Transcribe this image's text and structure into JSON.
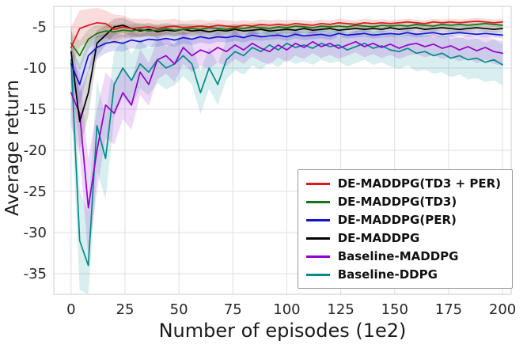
{
  "chart_data": {
    "type": "line",
    "title": "",
    "xlabel": "Number of episodes (1e2)",
    "ylabel": "Average return",
    "xlim": [
      -8,
      204
    ],
    "ylim": [
      -37.5,
      -2.5
    ],
    "xticks": [
      0,
      25,
      50,
      75,
      100,
      125,
      150,
      175,
      200
    ],
    "yticks": [
      -35,
      -30,
      -25,
      -20,
      -15,
      -10,
      -5
    ],
    "grid": true,
    "legend_position": "lower right",
    "x": [
      0,
      4,
      8,
      12,
      16,
      20,
      24,
      28,
      32,
      36,
      40,
      44,
      48,
      52,
      56,
      60,
      64,
      68,
      72,
      76,
      80,
      84,
      88,
      92,
      96,
      100,
      104,
      108,
      112,
      116,
      120,
      124,
      128,
      132,
      136,
      140,
      144,
      148,
      152,
      156,
      160,
      164,
      168,
      172,
      176,
      180,
      184,
      188,
      192,
      196,
      200
    ],
    "series": [
      {
        "name": "DE-MADDPG(TD3 + PER)",
        "color": "#e01717",
        "values": [
          -7.5,
          -5.2,
          -4.8,
          -4.5,
          -4.6,
          -5.3,
          -5.0,
          -5.2,
          -5.1,
          -5.0,
          -5.2,
          -5.0,
          -4.9,
          -5.1,
          -5.0,
          -4.9,
          -5.0,
          -4.8,
          -4.9,
          -5.0,
          -4.8,
          -4.9,
          -4.7,
          -4.8,
          -4.7,
          -4.8,
          -4.6,
          -4.7,
          -4.8,
          -4.6,
          -4.7,
          -4.5,
          -4.6,
          -4.7,
          -4.5,
          -4.6,
          -4.5,
          -4.6,
          -4.5,
          -4.4,
          -4.5,
          -4.6,
          -4.4,
          -4.5,
          -4.4,
          -4.5,
          -4.4,
          -4.3,
          -4.4,
          -4.5,
          -4.4
        ],
        "band": [
          2.5,
          2.2,
          2.0,
          1.8,
          1.6,
          1.8,
          1.4,
          1.2,
          1.1,
          1.0,
          1.0,
          0.9,
          0.9,
          0.8,
          0.8,
          0.8,
          0.7,
          0.7,
          0.7,
          0.7,
          0.6,
          0.6,
          0.6,
          0.6,
          0.6,
          0.6,
          0.5,
          0.5,
          0.5,
          0.5,
          0.5,
          0.5,
          0.5,
          0.5,
          0.5,
          0.5,
          0.4,
          0.4,
          0.4,
          0.4,
          0.4,
          0.4,
          0.4,
          0.4,
          0.4,
          0.4,
          0.4,
          0.4,
          0.4,
          0.4,
          0.4
        ]
      },
      {
        "name": "DE-MADDPG(TD3)",
        "color": "#127412",
        "values": [
          -7.0,
          -8.5,
          -6.5,
          -5.8,
          -5.5,
          -5.6,
          -5.4,
          -5.5,
          -5.3,
          -5.5,
          -5.4,
          -5.2,
          -5.4,
          -5.3,
          -5.2,
          -5.3,
          -5.1,
          -5.2,
          -5.3,
          -5.1,
          -5.2,
          -5.0,
          -5.1,
          -5.2,
          -5.0,
          -5.1,
          -4.9,
          -5.0,
          -5.1,
          -4.9,
          -5.0,
          -4.9,
          -5.0,
          -4.8,
          -4.9,
          -5.0,
          -4.8,
          -4.9,
          -4.8,
          -4.9,
          -4.7,
          -4.8,
          -4.9,
          -4.7,
          -4.8,
          -4.7,
          -4.8,
          -4.7,
          -4.6,
          -4.7,
          -4.8
        ],
        "band": [
          1.5,
          1.8,
          1.2,
          1.0,
          0.9,
          0.9,
          0.8,
          0.8,
          0.8,
          0.7,
          0.7,
          0.7,
          0.7,
          0.6,
          0.6,
          0.6,
          0.6,
          0.6,
          0.5,
          0.5,
          0.5,
          0.5,
          0.5,
          0.5,
          0.5,
          0.5,
          0.4,
          0.4,
          0.4,
          0.4,
          0.4,
          0.4,
          0.4,
          0.4,
          0.4,
          0.4,
          0.4,
          0.4,
          0.4,
          0.4,
          0.3,
          0.3,
          0.3,
          0.3,
          0.3,
          0.3,
          0.3,
          0.3,
          0.3,
          0.3,
          0.3
        ]
      },
      {
        "name": "DE-MADDPG(PER)",
        "color": "#1414cc",
        "values": [
          -9.5,
          -12.0,
          -8.5,
          -7.5,
          -7.0,
          -6.8,
          -7.0,
          -6.6,
          -6.8,
          -6.5,
          -6.6,
          -6.4,
          -6.6,
          -6.3,
          -6.5,
          -6.2,
          -6.4,
          -6.2,
          -6.3,
          -6.1,
          -6.3,
          -6.0,
          -6.2,
          -6.1,
          -6.0,
          -6.2,
          -5.9,
          -6.1,
          -6.0,
          -5.9,
          -6.1,
          -5.8,
          -6.0,
          -5.9,
          -5.8,
          -6.0,
          -5.9,
          -5.8,
          -5.9,
          -5.7,
          -5.9,
          -5.8,
          -5.7,
          -5.9,
          -5.8,
          -5.7,
          -5.8,
          -5.9,
          -5.8,
          -5.9,
          -6.0
        ],
        "band": [
          2.0,
          2.5,
          1.8,
          1.4,
          1.2,
          1.1,
          1.0,
          1.0,
          0.9,
          0.9,
          0.8,
          0.8,
          0.8,
          0.7,
          0.7,
          0.7,
          0.7,
          0.6,
          0.6,
          0.6,
          0.6,
          0.6,
          0.5,
          0.5,
          0.5,
          0.5,
          0.5,
          0.5,
          0.5,
          0.5,
          0.5,
          0.4,
          0.4,
          0.4,
          0.4,
          0.4,
          0.4,
          0.4,
          0.4,
          0.4,
          0.4,
          0.4,
          0.4,
          0.4,
          0.4,
          0.4,
          0.4,
          0.4,
          0.4,
          0.4,
          0.4
        ]
      },
      {
        "name": "DE-MADDPG",
        "color": "#000000",
        "values": [
          -8.0,
          -16.5,
          -13.0,
          -7.0,
          -6.0,
          -5.0,
          -4.8,
          -5.2,
          -5.5,
          -5.3,
          -5.6,
          -5.4,
          -5.5,
          -5.3,
          -5.5,
          -5.4,
          -5.6,
          -5.4,
          -5.5,
          -5.3,
          -5.5,
          -5.4,
          -5.3,
          -5.5,
          -5.4,
          -5.3,
          -5.4,
          -5.2,
          -5.4,
          -5.3,
          -5.2,
          -5.4,
          -5.3,
          -5.2,
          -5.3,
          -5.2,
          -5.3,
          -5.1,
          -5.3,
          -5.2,
          -5.1,
          -5.3,
          -5.2,
          -5.1,
          -5.2,
          -5.3,
          -5.2,
          -5.1,
          -5.2,
          -5.3,
          -5.2
        ],
        "band": [
          3.0,
          3.5,
          2.8,
          1.6,
          1.2,
          1.0,
          0.9,
          0.9,
          0.8,
          0.8,
          0.8,
          0.7,
          0.7,
          0.7,
          0.7,
          0.6,
          0.6,
          0.6,
          0.6,
          0.6,
          0.5,
          0.5,
          0.5,
          0.5,
          0.5,
          0.5,
          0.5,
          0.5,
          0.4,
          0.4,
          0.4,
          0.4,
          0.4,
          0.4,
          0.4,
          0.4,
          0.4,
          0.4,
          0.4,
          0.4,
          0.4,
          0.4,
          0.4,
          0.4,
          0.4,
          0.4,
          0.4,
          0.4,
          0.4,
          0.4,
          0.4
        ]
      },
      {
        "name": "Baseline-MADDPG",
        "color": "#9400d3",
        "values": [
          -13.0,
          -15.5,
          -27.0,
          -20.0,
          -14.5,
          -15.5,
          -13.0,
          -14.5,
          -10.5,
          -12.0,
          -9.0,
          -8.5,
          -9.5,
          -7.5,
          -8.5,
          -7.8,
          -8.2,
          -7.5,
          -8.0,
          -7.2,
          -7.8,
          -7.0,
          -7.6,
          -8.0,
          -7.2,
          -7.8,
          -7.0,
          -7.5,
          -6.8,
          -7.4,
          -7.0,
          -7.6,
          -7.2,
          -6.8,
          -7.4,
          -7.0,
          -7.5,
          -7.1,
          -7.6,
          -7.2,
          -7.0,
          -7.4,
          -7.1,
          -7.6,
          -7.3,
          -7.8,
          -7.4,
          -7.9,
          -7.5,
          -8.0,
          -8.2
        ],
        "band": [
          4.0,
          5.0,
          6.0,
          5.0,
          4.0,
          3.8,
          3.2,
          3.0,
          2.8,
          2.6,
          2.4,
          2.2,
          2.2,
          2.0,
          2.0,
          1.9,
          1.9,
          1.8,
          1.8,
          1.7,
          1.7,
          1.6,
          1.6,
          1.6,
          1.5,
          1.5,
          1.5,
          1.4,
          1.4,
          1.4,
          1.4,
          1.3,
          1.3,
          1.3,
          1.3,
          1.3,
          1.3,
          1.3,
          1.3,
          1.3,
          1.3,
          1.3,
          1.3,
          1.3,
          1.4,
          1.4,
          1.4,
          1.5,
          1.5,
          1.5,
          1.5
        ]
      },
      {
        "name": "Baseline-DDPG",
        "color": "#008b8b",
        "values": [
          -9.0,
          -31.0,
          -34.0,
          -17.0,
          -21.0,
          -12.0,
          -10.0,
          -11.5,
          -9.5,
          -10.5,
          -9.0,
          -10.0,
          -9.5,
          -8.5,
          -9.5,
          -13.0,
          -10.0,
          -12.0,
          -9.0,
          -8.0,
          -8.5,
          -7.5,
          -8.0,
          -7.2,
          -7.8,
          -7.0,
          -7.5,
          -7.2,
          -7.6,
          -7.0,
          -7.4,
          -7.2,
          -7.8,
          -7.4,
          -7.0,
          -7.6,
          -7.3,
          -7.8,
          -8.0,
          -7.6,
          -8.2,
          -8.0,
          -8.5,
          -8.2,
          -8.8,
          -8.5,
          -9.0,
          -8.8,
          -9.3,
          -9.0,
          -9.6
        ],
        "band": [
          5.0,
          6.0,
          6.5,
          5.5,
          5.0,
          4.0,
          3.5,
          3.2,
          3.0,
          2.8,
          2.8,
          2.6,
          2.6,
          2.5,
          2.5,
          2.6,
          2.5,
          2.5,
          2.4,
          2.3,
          2.3,
          2.2,
          2.2,
          2.1,
          2.1,
          2.0,
          2.0,
          2.0,
          2.0,
          2.0,
          2.0,
          2.0,
          2.0,
          2.0,
          2.0,
          2.0,
          2.0,
          2.0,
          2.1,
          2.1,
          2.2,
          2.2,
          2.2,
          2.3,
          2.3,
          2.3,
          2.4,
          2.4,
          2.4,
          2.5,
          2.5
        ]
      }
    ]
  }
}
